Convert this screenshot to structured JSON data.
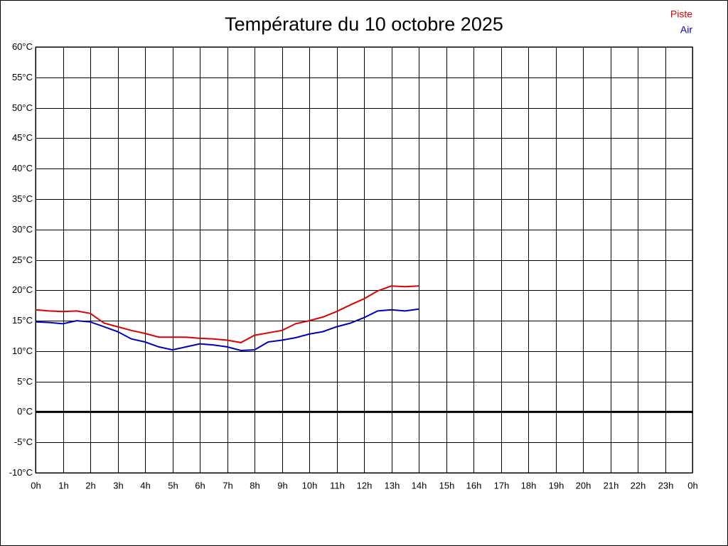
{
  "chart_data": {
    "type": "line",
    "title": "Température du 10 octobre 2025",
    "x": [
      0,
      0.5,
      1,
      1.5,
      2,
      2.5,
      3,
      3.5,
      4,
      4.5,
      5,
      5.5,
      6,
      6.5,
      7,
      7.5,
      8,
      8.5,
      9,
      9.5,
      10,
      10.5,
      11,
      11.5,
      12,
      12.5,
      13,
      13.5,
      14
    ],
    "series": [
      {
        "name": "Piste",
        "color": "#dd0000",
        "values": [
          16.8,
          16.6,
          16.5,
          16.6,
          16.2,
          14.6,
          14.0,
          13.4,
          12.9,
          12.3,
          12.3,
          12.3,
          12.1,
          12.0,
          11.8,
          11.4,
          12.6,
          13.0,
          13.4,
          14.5,
          15.0,
          15.6,
          16.5,
          17.6,
          18.6,
          19.9,
          20.7,
          20.6,
          20.7
        ]
      },
      {
        "name": "Air",
        "color": "#0000bb",
        "values": [
          14.8,
          14.7,
          14.5,
          15.0,
          14.8,
          14.0,
          13.2,
          12.0,
          11.5,
          10.7,
          10.2,
          10.7,
          11.2,
          11.0,
          10.7,
          10.1,
          10.2,
          11.5,
          11.8,
          12.2,
          12.8,
          13.2,
          14.0,
          14.6,
          15.5,
          16.6,
          16.8,
          16.6,
          16.9
        ]
      }
    ],
    "xlim": [
      0,
      24
    ],
    "xticks": [
      {
        "value": 0,
        "label": "0h"
      },
      {
        "value": 1,
        "label": "1h"
      },
      {
        "value": 2,
        "label": "2h"
      },
      {
        "value": 3,
        "label": "3h"
      },
      {
        "value": 4,
        "label": "4h"
      },
      {
        "value": 5,
        "label": "5h"
      },
      {
        "value": 6,
        "label": "6h"
      },
      {
        "value": 7,
        "label": "7h"
      },
      {
        "value": 8,
        "label": "8h"
      },
      {
        "value": 9,
        "label": "9h"
      },
      {
        "value": 10,
        "label": "10h"
      },
      {
        "value": 11,
        "label": "11h"
      },
      {
        "value": 12,
        "label": "12h"
      },
      {
        "value": 13,
        "label": "13h"
      },
      {
        "value": 14,
        "label": "14h"
      },
      {
        "value": 15,
        "label": "15h"
      },
      {
        "value": 16,
        "label": "16h"
      },
      {
        "value": 17,
        "label": "17h"
      },
      {
        "value": 18,
        "label": "18h"
      },
      {
        "value": 19,
        "label": "19h"
      },
      {
        "value": 20,
        "label": "20h"
      },
      {
        "value": 21,
        "label": "21h"
      },
      {
        "value": 22,
        "label": "22h"
      },
      {
        "value": 23,
        "label": "23h"
      },
      {
        "value": 24,
        "label": "0h"
      }
    ],
    "ylim": [
      -10,
      60
    ],
    "yticks": [
      {
        "value": -10,
        "label": "-10°C"
      },
      {
        "value": -5,
        "label": "-5°C"
      },
      {
        "value": 0,
        "label": "0°C"
      },
      {
        "value": 5,
        "label": "5°C"
      },
      {
        "value": 10,
        "label": "10°C"
      },
      {
        "value": 15,
        "label": "15°C"
      },
      {
        "value": 20,
        "label": "20°C"
      },
      {
        "value": 25,
        "label": "25°C"
      },
      {
        "value": 30,
        "label": "30°C"
      },
      {
        "value": 35,
        "label": "35°C"
      },
      {
        "value": 40,
        "label": "40°C"
      },
      {
        "value": 45,
        "label": "45°C"
      },
      {
        "value": 50,
        "label": "50°C"
      },
      {
        "value": 55,
        "label": "55°C"
      },
      {
        "value": 60,
        "label": "60°C"
      }
    ],
    "grid": true,
    "legend": "top-right"
  }
}
